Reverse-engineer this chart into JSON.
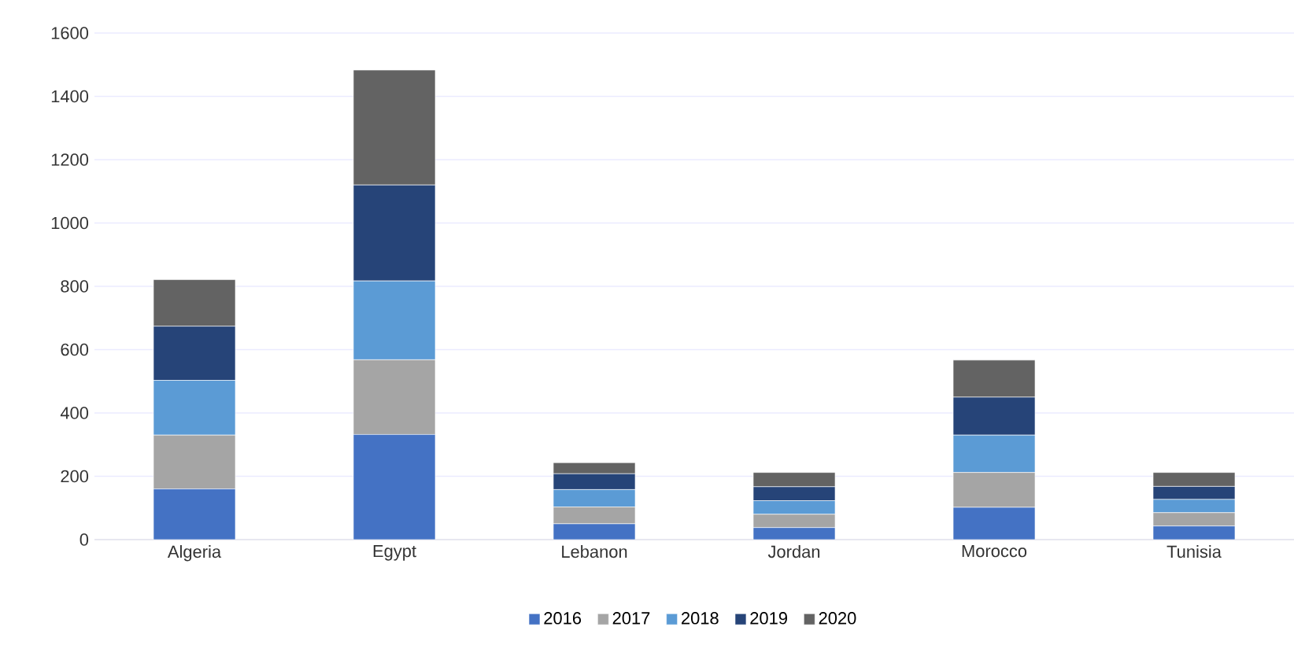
{
  "chart_data": {
    "type": "bar",
    "stacked": true,
    "categories": [
      "Algeria",
      "Egypt",
      "Lebanon",
      "Jordan",
      "Morocco",
      "Tunisia"
    ],
    "series": [
      {
        "name": "2016",
        "color": "#4472c4",
        "values": [
          160,
          332,
          50,
          38,
          102,
          43
        ]
      },
      {
        "name": "2017",
        "color": "#a5a5a5",
        "values": [
          170,
          236,
          53,
          42,
          110,
          42
        ]
      },
      {
        "name": "2018",
        "color": "#5b9bd5",
        "values": [
          173,
          249,
          55,
          43,
          118,
          42
        ]
      },
      {
        "name": "2019",
        "color": "#264478",
        "values": [
          171,
          303,
          50,
          44,
          120,
          41
        ]
      },
      {
        "name": "2020",
        "color": "#636363",
        "values": [
          147,
          363,
          35,
          45,
          117,
          44
        ]
      }
    ],
    "ylim": [
      0,
      1600
    ],
    "yticks": [
      0,
      200,
      400,
      600,
      800,
      1000,
      1200,
      1400,
      1600
    ],
    "grid": "y",
    "legend": "bottom"
  }
}
